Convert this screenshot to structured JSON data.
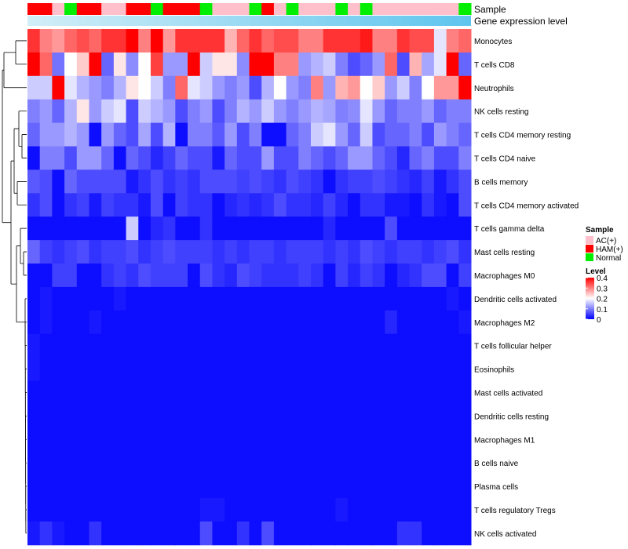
{
  "chart_data": {
    "type": "heatmap",
    "title": "",
    "annotations": {
      "sample_label": "Sample",
      "gene_label": "Gene expression level"
    },
    "sample_groups": [
      "AC(+)",
      "HAM(+)",
      "Normal"
    ],
    "group_colors": {
      "AC(+)": "#ffc0cb",
      "HAM(+)": "#ff0000",
      "Normal": "#00ee00"
    },
    "column_samples": [
      "HAM(+)",
      "HAM(+)",
      "AC(+)",
      "Normal",
      "HAM(+)",
      "HAM(+)",
      "AC(+)",
      "AC(+)",
      "HAM(+)",
      "HAM(+)",
      "Normal",
      "HAM(+)",
      "HAM(+)",
      "HAM(+)",
      "Normal",
      "AC(+)",
      "AC(+)",
      "AC(+)",
      "Normal",
      "HAM(+)",
      "AC(+)",
      "Normal",
      "AC(+)",
      "AC(+)",
      "AC(+)",
      "Normal",
      "AC(+)",
      "Normal",
      "AC(+)",
      "AC(+)",
      "AC(+)",
      "AC(+)",
      "AC(+)",
      "AC(+)",
      "AC(+)",
      "Normal"
    ],
    "rows": [
      "Monocytes",
      "T cells CD8",
      "Neutrophils",
      "NK cells resting",
      "T cells CD4 memory resting",
      "T cells CD4 naive",
      "B cells memory",
      "T cells CD4 memory activated",
      "T cells gamma delta",
      "Mast cells resting",
      "Macrophages M0",
      "Dendritic cells activated",
      "Macrophages M2",
      "T cells follicular helper",
      "Eosinophils",
      "Mast cells activated",
      "Dendritic cells resting",
      "Macrophages M1",
      "B cells naive",
      "Plasma cells",
      "T cells regulatory  Tregs",
      "NK cells activated"
    ],
    "values": [
      [
        0.36,
        0.3,
        0.28,
        0.32,
        0.34,
        0.32,
        0.36,
        0.36,
        0.4,
        0.3,
        0.4,
        0.28,
        0.36,
        0.36,
        0.36,
        0.36,
        0.26,
        0.32,
        0.36,
        0.32,
        0.34,
        0.34,
        0.3,
        0.3,
        0.36,
        0.36,
        0.36,
        0.38,
        0.3,
        0.3,
        0.36,
        0.34,
        0.34,
        0.18,
        0.3,
        0.32
      ],
      [
        0.4,
        0.32,
        0.09,
        0.2,
        0.24,
        0.4,
        0.08,
        0.22,
        0.11,
        0.2,
        0.35,
        0.12,
        0.12,
        0.4,
        0.16,
        0.22,
        0.22,
        0.11,
        0.4,
        0.4,
        0.3,
        0.3,
        0.12,
        0.14,
        0.16,
        0.1,
        0.06,
        0.08,
        0.12,
        0.32,
        0.06,
        0.26,
        0.13,
        0.18,
        0.4,
        0.08
      ],
      [
        0.16,
        0.16,
        0.4,
        0.18,
        0.14,
        0.12,
        0.1,
        0.14,
        0.22,
        0.2,
        0.16,
        0.1,
        0.32,
        0.18,
        0.16,
        0.12,
        0.1,
        0.12,
        0.06,
        0.14,
        0.2,
        0.12,
        0.1,
        0.3,
        0.12,
        0.26,
        0.28,
        0.2,
        0.24,
        0.12,
        0.16,
        0.1,
        0.2,
        0.28,
        0.28,
        0.4
      ],
      [
        0.1,
        0.12,
        0.08,
        0.14,
        0.22,
        0.12,
        0.16,
        0.18,
        0.06,
        0.16,
        0.14,
        0.12,
        0.06,
        0.1,
        0.12,
        0.06,
        0.1,
        0.14,
        0.12,
        0.16,
        0.12,
        0.1,
        0.12,
        0.14,
        0.13,
        0.1,
        0.11,
        0.18,
        0.12,
        0.08,
        0.1,
        0.1,
        0.12,
        0.08,
        0.1,
        0.1
      ],
      [
        0.08,
        0.12,
        0.12,
        0.14,
        0.12,
        0.01,
        0.12,
        0.08,
        0.06,
        0.13,
        0.06,
        0.14,
        0.01,
        0.1,
        0.1,
        0.07,
        0.12,
        0.06,
        0.1,
        0.01,
        0.01,
        0.08,
        0.1,
        0.16,
        0.18,
        0.12,
        0.08,
        0.16,
        0.06,
        0.08,
        0.08,
        0.1,
        0.06,
        0.12,
        0.1,
        0.08
      ],
      [
        0.01,
        0.1,
        0.1,
        0.06,
        0.12,
        0.12,
        0.08,
        0.01,
        0.08,
        0.06,
        0.03,
        0.05,
        0.08,
        0.06,
        0.06,
        0.02,
        0.08,
        0.06,
        0.06,
        0.12,
        0.06,
        0.06,
        0.1,
        0.08,
        0.06,
        0.08,
        0.12,
        0.12,
        0.08,
        0.06,
        0.03,
        0.08,
        0.1,
        0.06,
        0.06,
        0.1
      ],
      [
        0.07,
        0.06,
        0.01,
        0.08,
        0.06,
        0.06,
        0.06,
        0.06,
        0.02,
        0.04,
        0.06,
        0.04,
        0.05,
        0.04,
        0.06,
        0.06,
        0.06,
        0.05,
        0.06,
        0.05,
        0.04,
        0.06,
        0.05,
        0.04,
        0.01,
        0.04,
        0.05,
        0.05,
        0.06,
        0.05,
        0.04,
        0.03,
        0.05,
        0.02,
        0.04,
        0.06
      ],
      [
        0.04,
        0.06,
        0.01,
        0.04,
        0.05,
        0.02,
        0.05,
        0.04,
        0.04,
        0.02,
        0.06,
        0.01,
        0.05,
        0.04,
        0.04,
        0.01,
        0.03,
        0.04,
        0.03,
        0.04,
        0.06,
        0.04,
        0.04,
        0.03,
        0.05,
        0.03,
        0.01,
        0.04,
        0.04,
        0.02,
        0.02,
        0.01,
        0.04,
        0.02,
        0.01,
        0.06
      ],
      [
        0.01,
        0.01,
        0.01,
        0.01,
        0.01,
        0.01,
        0.01,
        0.01,
        0.16,
        0.01,
        0.03,
        0.04,
        0.01,
        0.01,
        0.04,
        0.01,
        0.01,
        0.01,
        0.01,
        0.01,
        0.01,
        0.01,
        0.01,
        0.01,
        0.03,
        0.01,
        0.01,
        0.01,
        0.01,
        0.06,
        0.01,
        0.01,
        0.01,
        0.01,
        0.01,
        0.01
      ],
      [
        0.08,
        0.05,
        0.04,
        0.05,
        0.06,
        0.04,
        0.05,
        0.05,
        0.06,
        0.04,
        0.05,
        0.06,
        0.05,
        0.05,
        0.05,
        0.04,
        0.05,
        0.04,
        0.05,
        0.05,
        0.04,
        0.05,
        0.05,
        0.05,
        0.04,
        0.05,
        0.04,
        0.06,
        0.05,
        0.04,
        0.05,
        0.05,
        0.04,
        0.05,
        0.06,
        0.04
      ],
      [
        0.01,
        0.01,
        0.05,
        0.05,
        0.01,
        0.01,
        0.04,
        0.05,
        0.04,
        0.06,
        0.05,
        0.05,
        0.05,
        0.01,
        0.06,
        0.04,
        0.03,
        0.06,
        0.05,
        0.04,
        0.04,
        0.04,
        0.05,
        0.04,
        0.01,
        0.05,
        0.03,
        0.05,
        0.04,
        0.01,
        0.03,
        0.04,
        0.06,
        0.06,
        0.01,
        0.05
      ],
      [
        0.01,
        0.02,
        0.01,
        0.01,
        0.01,
        0.01,
        0.01,
        0.02,
        0.01,
        0.01,
        0.01,
        0.01,
        0.01,
        0.01,
        0.01,
        0.01,
        0.01,
        0.01,
        0.01,
        0.01,
        0.01,
        0.01,
        0.01,
        0.01,
        0.01,
        0.01,
        0.01,
        0.01,
        0.01,
        0.01,
        0.01,
        0.01,
        0.01,
        0.01,
        0.02,
        0.01
      ],
      [
        0.01,
        0.02,
        0.01,
        0.01,
        0.01,
        0.02,
        0.01,
        0.01,
        0.01,
        0.01,
        0.01,
        0.01,
        0.01,
        0.01,
        0.01,
        0.01,
        0.01,
        0.01,
        0.01,
        0.01,
        0.01,
        0.01,
        0.01,
        0.01,
        0.01,
        0.01,
        0.01,
        0.01,
        0.01,
        0.03,
        0.01,
        0.01,
        0.01,
        0.01,
        0.01,
        0.02
      ],
      [
        0.02,
        0.01,
        0.01,
        0.01,
        0.01,
        0.01,
        0.01,
        0.01,
        0.01,
        0.01,
        0.01,
        0.01,
        0.01,
        0.01,
        0.01,
        0.01,
        0.01,
        0.01,
        0.01,
        0.01,
        0.01,
        0.01,
        0.01,
        0.01,
        0.01,
        0.01,
        0.01,
        0.01,
        0.01,
        0.01,
        0.01,
        0.01,
        0.01,
        0.01,
        0.01,
        0.01
      ],
      [
        0.02,
        0.01,
        0.01,
        0.01,
        0.01,
        0.01,
        0.01,
        0.01,
        0.01,
        0.01,
        0.01,
        0.01,
        0.01,
        0.01,
        0.01,
        0.01,
        0.01,
        0.01,
        0.01,
        0.01,
        0.01,
        0.01,
        0.01,
        0.01,
        0.01,
        0.01,
        0.01,
        0.01,
        0.01,
        0.01,
        0.01,
        0.01,
        0.01,
        0.01,
        0.01,
        0.01
      ],
      [
        0.01,
        0.01,
        0.01,
        0.01,
        0.01,
        0.01,
        0.01,
        0.01,
        0.01,
        0.01,
        0.01,
        0.01,
        0.01,
        0.01,
        0.01,
        0.01,
        0.01,
        0.01,
        0.01,
        0.01,
        0.01,
        0.01,
        0.01,
        0.01,
        0.01,
        0.01,
        0.01,
        0.01,
        0.01,
        0.01,
        0.01,
        0.01,
        0.01,
        0.01,
        0.01,
        0.01
      ],
      [
        0.01,
        0.01,
        0.01,
        0.01,
        0.01,
        0.01,
        0.01,
        0.01,
        0.01,
        0.01,
        0.01,
        0.01,
        0.01,
        0.01,
        0.01,
        0.01,
        0.01,
        0.01,
        0.01,
        0.01,
        0.01,
        0.01,
        0.01,
        0.01,
        0.01,
        0.01,
        0.01,
        0.01,
        0.01,
        0.01,
        0.01,
        0.01,
        0.01,
        0.01,
        0.01,
        0.01
      ],
      [
        0.01,
        0.01,
        0.01,
        0.01,
        0.01,
        0.01,
        0.01,
        0.01,
        0.01,
        0.01,
        0.01,
        0.01,
        0.01,
        0.01,
        0.01,
        0.01,
        0.01,
        0.01,
        0.01,
        0.01,
        0.01,
        0.01,
        0.01,
        0.01,
        0.01,
        0.01,
        0.01,
        0.01,
        0.01,
        0.01,
        0.01,
        0.01,
        0.01,
        0.01,
        0.01,
        0.01
      ],
      [
        0.01,
        0.01,
        0.01,
        0.01,
        0.01,
        0.01,
        0.01,
        0.01,
        0.01,
        0.01,
        0.01,
        0.01,
        0.01,
        0.01,
        0.01,
        0.01,
        0.01,
        0.01,
        0.01,
        0.01,
        0.01,
        0.01,
        0.01,
        0.01,
        0.01,
        0.01,
        0.01,
        0.01,
        0.01,
        0.01,
        0.01,
        0.01,
        0.01,
        0.01,
        0.01,
        0.01
      ],
      [
        0.01,
        0.01,
        0.01,
        0.01,
        0.01,
        0.01,
        0.01,
        0.01,
        0.01,
        0.01,
        0.01,
        0.01,
        0.01,
        0.01,
        0.01,
        0.01,
        0.01,
        0.01,
        0.01,
        0.01,
        0.01,
        0.01,
        0.01,
        0.01,
        0.01,
        0.01,
        0.01,
        0.01,
        0.01,
        0.01,
        0.01,
        0.01,
        0.01,
        0.01,
        0.01,
        0.01
      ],
      [
        0.01,
        0.01,
        0.01,
        0.01,
        0.01,
        0.01,
        0.01,
        0.01,
        0.01,
        0.01,
        0.01,
        0.01,
        0.01,
        0.01,
        0.02,
        0.02,
        0.01,
        0.01,
        0.01,
        0.01,
        0.01,
        0.01,
        0.01,
        0.01,
        0.01,
        0.02,
        0.01,
        0.01,
        0.01,
        0.01,
        0.01,
        0.01,
        0.01,
        0.01,
        0.01,
        0.01
      ],
      [
        0.02,
        0.04,
        0.02,
        0.01,
        0.01,
        0.04,
        0.01,
        0.01,
        0.01,
        0.01,
        0.01,
        0.01,
        0.01,
        0.01,
        0.06,
        0.01,
        0.01,
        0.04,
        0.01,
        0.06,
        0.01,
        0.01,
        0.01,
        0.01,
        0.01,
        0.01,
        0.01,
        0.01,
        0.01,
        0.01,
        0.04,
        0.04,
        0.01,
        0.01,
        0.01,
        0.01
      ]
    ],
    "row_order_note": "rows listed top to bottom",
    "level_legend": {
      "title": "Level",
      "ticks": [
        "0.4",
        "0.3",
        "0.2",
        "0.1",
        "0"
      ],
      "range": [
        0,
        0.4
      ]
    },
    "sample_legend_title": "Sample"
  }
}
